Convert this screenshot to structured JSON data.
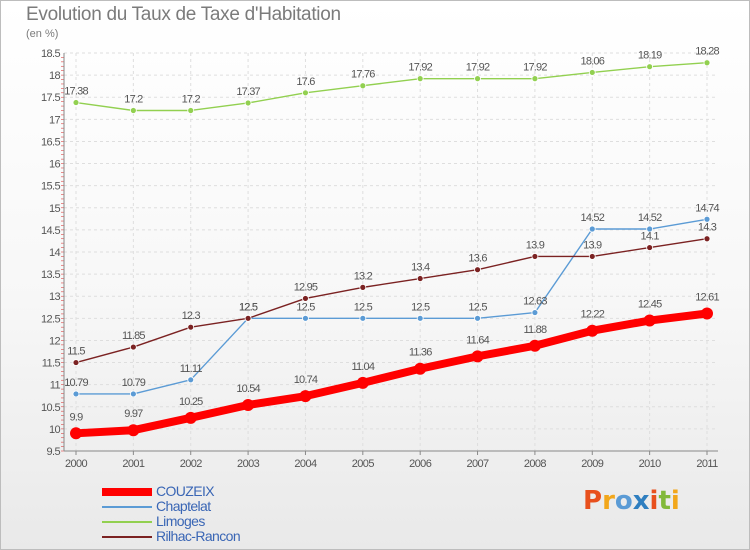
{
  "header": {
    "title": "Evolution du Taux de Taxe d'Habitation",
    "unit": "(en %)"
  },
  "logo": {
    "text": "Proxiti",
    "colors": [
      "#e8501d",
      "#f2a71b",
      "#5b9bd5",
      "#2f7fc0",
      "#e8501d",
      "#82b93a",
      "#f2a71b"
    ]
  },
  "chart_data": {
    "type": "line",
    "x": [
      "2000",
      "2001",
      "2002",
      "2003",
      "2004",
      "2005",
      "2006",
      "2007",
      "2008",
      "2009",
      "2010",
      "2011"
    ],
    "ylim": [
      9.5,
      18.5
    ],
    "yticks": [
      "9.5",
      "10",
      "10.5",
      "11",
      "11.5",
      "12",
      "12.5",
      "13",
      "13.5",
      "14",
      "14.5",
      "15",
      "15.5",
      "16",
      "16.5",
      "17",
      "17.5",
      "18",
      "18.5"
    ],
    "grid": true,
    "legend_position": "bottom-left",
    "series": [
      {
        "name": "COUZEIX",
        "color": "#ff0000",
        "emphasis": true,
        "values": [
          9.9,
          9.97,
          10.25,
          10.54,
          10.74,
          11.04,
          11.36,
          11.64,
          11.88,
          12.22,
          12.45,
          12.61
        ],
        "labels": [
          "9.9",
          "9.97",
          "10.25",
          "10.54",
          "10.74",
          "11.04",
          "11.36",
          "11.64",
          "11.88",
          "12.22",
          "12.45",
          "12.61"
        ]
      },
      {
        "name": "Chaptelat",
        "color": "#5b9bd5",
        "values": [
          10.79,
          10.79,
          11.11,
          12.5,
          12.5,
          12.5,
          12.5,
          12.5,
          12.63,
          14.52,
          14.52,
          14.74
        ],
        "labels": [
          "10.79",
          "10.79",
          "11.11",
          "12.5",
          "12.5",
          "12.5",
          "12.5",
          "12.5",
          "12.63",
          "14.52",
          "14.52",
          "14.74"
        ]
      },
      {
        "name": "Limoges",
        "color": "#92d050",
        "values": [
          17.38,
          17.2,
          17.2,
          17.37,
          17.6,
          17.76,
          17.92,
          17.92,
          17.92,
          18.06,
          18.19,
          18.28
        ],
        "labels": [
          "17.38",
          "17.2",
          "17.2",
          "17.37",
          "17.6",
          "17.76",
          "17.92",
          "17.92",
          "17.92",
          "18.06",
          "18.19",
          "18.28"
        ]
      },
      {
        "name": "Rilhac-Rancon",
        "color": "#7b2222",
        "values": [
          11.5,
          11.85,
          12.3,
          12.5,
          12.95,
          13.2,
          13.4,
          13.6,
          13.9,
          13.9,
          14.1,
          14.3
        ],
        "labels": [
          "11.5",
          "11.85",
          "12.3",
          "12.5",
          "12.95",
          "13.2",
          "13.4",
          "13.6",
          "13.9",
          "13.9",
          "14.1",
          "14.3"
        ]
      }
    ]
  }
}
